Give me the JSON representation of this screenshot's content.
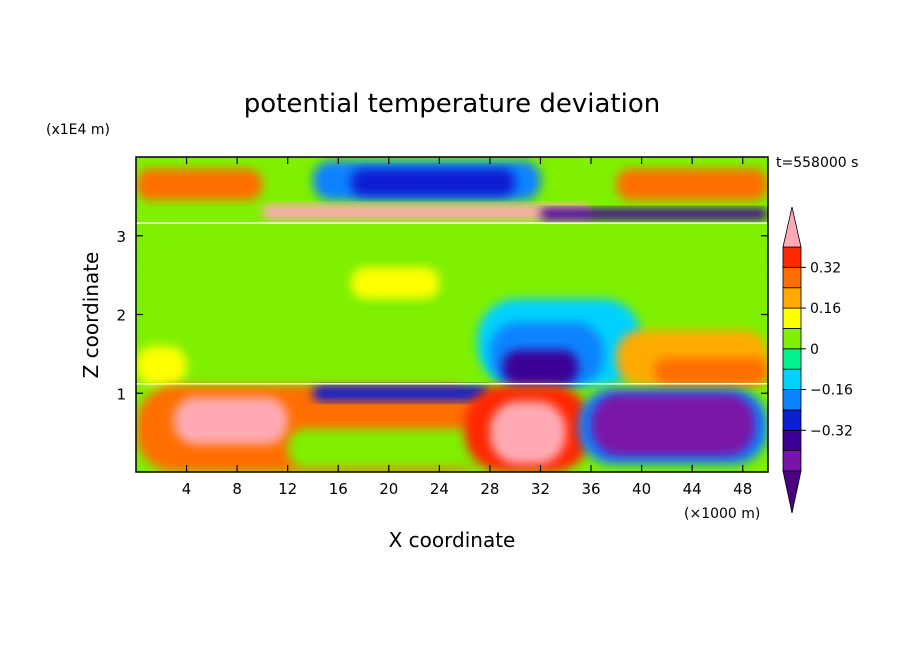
{
  "chart_data": {
    "type": "heatmap",
    "title": "potential temperature deviation",
    "xlabel": "X coordinate",
    "ylabel": "Z coordinate",
    "x_unit": "(×1000 m)",
    "y_unit": "(x1E4 m)",
    "time_label": "t=558000 s",
    "xlim": [
      0,
      50
    ],
    "ylim": [
      0,
      4
    ],
    "x_ticks": [
      4,
      8,
      12,
      16,
      20,
      24,
      28,
      32,
      36,
      40,
      44,
      48
    ],
    "y_ticks": [
      1,
      2,
      3
    ],
    "colorbar": {
      "levels": [
        -0.48,
        -0.4,
        -0.32,
        -0.24,
        -0.16,
        -0.08,
        0,
        0.08,
        0.16,
        0.24,
        0.32,
        0.4
      ],
      "colors": [
        "#4b0082",
        "#7a14a8",
        "#3a0096",
        "#0a1ed2",
        "#0a82ff",
        "#00d2ff",
        "#00f08c",
        "#7ef000",
        "#ffff00",
        "#ffaa00",
        "#ff6e00",
        "#ff2800",
        "#ffaab4"
      ],
      "tick_values": [
        0.32,
        0.16,
        0,
        -0.16,
        -0.32
      ],
      "tick_labels": [
        "0.32",
        "0.16",
        "0",
        "−0.16",
        "−0.32"
      ],
      "extend": "both"
    },
    "regions": [
      {
        "x": [
          0,
          50
        ],
        "z": [
          0,
          4
        ],
        "value": 0.02
      },
      {
        "x": [
          0,
          50
        ],
        "z": [
          1.15,
          3.15
        ],
        "value": 0.05
      },
      {
        "x": [
          17,
          24
        ],
        "z": [
          2.2,
          2.6
        ],
        "value": 0.12
      },
      {
        "x": [
          27,
          40
        ],
        "z": [
          1.1,
          2.2
        ],
        "value": -0.13
      },
      {
        "x": [
          28,
          37
        ],
        "z": [
          1.1,
          1.9
        ],
        "value": -0.24
      },
      {
        "x": [
          29,
          35
        ],
        "z": [
          1.1,
          1.55
        ],
        "value": -0.34
      },
      {
        "x": [
          0,
          4
        ],
        "z": [
          1.1,
          1.6
        ],
        "value": 0.12
      },
      {
        "x": [
          38,
          50
        ],
        "z": [
          1.1,
          1.8
        ],
        "value": 0.18
      },
      {
        "x": [
          41,
          50
        ],
        "z": [
          1.1,
          1.45
        ],
        "value": 0.27
      },
      {
        "x": [
          0,
          10
        ],
        "z": [
          3.45,
          3.85
        ],
        "value": 0.28
      },
      {
        "x": [
          38,
          50
        ],
        "z": [
          3.45,
          3.85
        ],
        "value": 0.28
      },
      {
        "x": [
          14,
          32
        ],
        "z": [
          3.45,
          3.95
        ],
        "value": -0.2
      },
      {
        "x": [
          17,
          30
        ],
        "z": [
          3.5,
          3.85
        ],
        "value": -0.32
      },
      {
        "x": [
          10,
          36
        ],
        "z": [
          3.2,
          3.4
        ],
        "value": 0.45
      },
      {
        "x": [
          32,
          50
        ],
        "z": [
          3.2,
          3.35
        ],
        "value": -0.36
      },
      {
        "x": [
          0,
          28
        ],
        "z": [
          0,
          1.1
        ],
        "value": 0.3
      },
      {
        "x": [
          3,
          12
        ],
        "z": [
          0.35,
          0.95
        ],
        "value": 0.45
      },
      {
        "x": [
          12,
          28
        ],
        "z": [
          0.05,
          0.55
        ],
        "value": 0.05
      },
      {
        "x": [
          14,
          28
        ],
        "z": [
          0.9,
          1.1
        ],
        "value": -0.32
      },
      {
        "x": [
          26,
          36
        ],
        "z": [
          0,
          1.1
        ],
        "value": 0.33
      },
      {
        "x": [
          28,
          34
        ],
        "z": [
          0.1,
          0.9
        ],
        "value": 0.45
      },
      {
        "x": [
          35,
          50
        ],
        "z": [
          0.1,
          1.05
        ],
        "value": -0.18
      },
      {
        "x": [
          36,
          49
        ],
        "z": [
          0.2,
          1.0
        ],
        "value": -0.42
      }
    ]
  }
}
